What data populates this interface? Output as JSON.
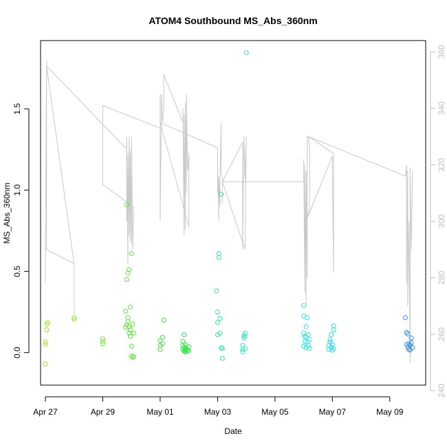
{
  "chart_data": {
    "type": "scatter",
    "title": "ATOM4 Southbound MS_Abs_360nm",
    "xlabel": "Date",
    "ylabel": "MS_Abs_360nm",
    "xlim": [
      "2023-04-26T20:00",
      "2023-05-10T06:00"
    ],
    "ylim": [
      -0.2,
      1.92
    ],
    "y2lim": [
      242,
      364
    ],
    "x_ticks": [
      {
        "date": "2023-04-27T00:00",
        "label": "Apr 27"
      },
      {
        "date": "2023-04-29T00:00",
        "label": "Apr 29"
      },
      {
        "date": "2023-05-01T00:00",
        "label": "May 01"
      },
      {
        "date": "2023-05-03T00:00",
        "label": "May 03"
      },
      {
        "date": "2023-05-05T00:00",
        "label": "May 05"
      },
      {
        "date": "2023-05-07T00:00",
        "label": "May 07"
      },
      {
        "date": "2023-05-09T00:00",
        "label": "May 09"
      }
    ],
    "y_ticks": [
      {
        "value": 0.0,
        "label": "0.0"
      },
      {
        "value": 0.5,
        "label": "0.5"
      },
      {
        "value": 1.0,
        "label": "1.0"
      },
      {
        "value": 1.5,
        "label": "1.5"
      }
    ],
    "y2_ticks": [
      {
        "value": 240,
        "label": "240"
      },
      {
        "value": 260,
        "label": "260"
      },
      {
        "value": 280,
        "label": "280"
      },
      {
        "value": 300,
        "label": "300"
      },
      {
        "value": 320,
        "label": "320"
      },
      {
        "value": 340,
        "label": "340"
      },
      {
        "value": 360,
        "label": "360"
      }
    ],
    "grid": false,
    "points": [
      {
        "x": "2023-04-27T00:00",
        "y": -0.07,
        "color": "#9ee63a"
      },
      {
        "x": "2023-04-27T00:00",
        "y": 0.05,
        "color": "#9ee63a"
      },
      {
        "x": "2023-04-27T00:00",
        "y": 0.065,
        "color": "#9ee63a"
      },
      {
        "x": "2023-04-27T01:00",
        "y": 0.14,
        "color": "#9ee63a"
      },
      {
        "x": "2023-04-27T01:00",
        "y": 0.175,
        "color": "#9ee63a"
      },
      {
        "x": "2023-04-27T02:00",
        "y": 0.185,
        "color": "#9ee63a"
      },
      {
        "x": "2023-04-28T00:00",
        "y": 0.205,
        "color": "#8fe63a"
      },
      {
        "x": "2023-04-28T00:00",
        "y": 0.215,
        "color": "#8fe63a"
      },
      {
        "x": "2023-04-29T00:00",
        "y": 0.055,
        "color": "#7ee63a"
      },
      {
        "x": "2023-04-29T00:00",
        "y": 0.07,
        "color": "#7ee63a"
      },
      {
        "x": "2023-04-29T00:00",
        "y": 0.085,
        "color": "#7ee63a"
      },
      {
        "x": "2023-04-29T19:00",
        "y": 0.155,
        "color": "#5ee63a"
      },
      {
        "x": "2023-04-29T19:00",
        "y": 0.255,
        "color": "#5ee63a"
      },
      {
        "x": "2023-04-29T20:00",
        "y": 0.17,
        "color": "#5ee63a"
      },
      {
        "x": "2023-04-29T20:00",
        "y": 0.45,
        "color": "#5ee63a"
      },
      {
        "x": "2023-04-29T20:00",
        "y": 0.91,
        "color": "#5ee63a"
      },
      {
        "x": "2023-04-29T21:00",
        "y": 0.19,
        "color": "#5ee63a"
      },
      {
        "x": "2023-04-29T21:00",
        "y": 0.215,
        "color": "#5ee63a"
      },
      {
        "x": "2023-04-29T21:00",
        "y": 0.49,
        "color": "#5ee63a"
      },
      {
        "x": "2023-04-29T22:00",
        "y": 0.12,
        "color": "#5ee63a"
      },
      {
        "x": "2023-04-29T22:00",
        "y": 0.16,
        "color": "#5ee63a"
      },
      {
        "x": "2023-04-29T22:00",
        "y": 0.51,
        "color": "#5ee63a"
      },
      {
        "x": "2023-04-29T23:00",
        "y": 0.1,
        "color": "#5ee63a"
      },
      {
        "x": "2023-04-29T23:00",
        "y": 0.14,
        "color": "#5ee63a"
      },
      {
        "x": "2023-04-29T23:00",
        "y": 0.28,
        "color": "#5ee63a"
      },
      {
        "x": "2023-04-30T00:00",
        "y": 0.61,
        "color": "#5ee63a"
      },
      {
        "x": "2023-04-30T00:00",
        "y": 0.04,
        "color": "#5ee63a"
      },
      {
        "x": "2023-04-30T00:00",
        "y": -0.02,
        "color": "#5ee63a"
      },
      {
        "x": "2023-04-30T01:00",
        "y": -0.03,
        "color": "#5ee63a"
      },
      {
        "x": "2023-04-30T01:00",
        "y": 0.175,
        "color": "#5ee63a"
      },
      {
        "x": "2023-04-30T02:00",
        "y": -0.025,
        "color": "#5ee63a"
      },
      {
        "x": "2023-04-30T02:00",
        "y": 0.12,
        "color": "#5ee63a"
      },
      {
        "x": "2023-05-01T00:00",
        "y": 0.02,
        "color": "#3fe63a"
      },
      {
        "x": "2023-05-01T00:00",
        "y": 0.045,
        "color": "#3fe63a"
      },
      {
        "x": "2023-05-01T00:00",
        "y": 0.075,
        "color": "#3fe63a"
      },
      {
        "x": "2023-05-01T02:00",
        "y": 0.055,
        "color": "#3fe63a"
      },
      {
        "x": "2023-05-01T02:00",
        "y": 0.095,
        "color": "#3fe63a"
      },
      {
        "x": "2023-05-01T03:00",
        "y": 0.2,
        "color": "#3fe63a"
      },
      {
        "x": "2023-05-01T19:00",
        "y": 0.02,
        "color": "#2ae63f"
      },
      {
        "x": "2023-05-01T19:00",
        "y": 0.045,
        "color": "#2ae63f"
      },
      {
        "x": "2023-05-01T19:00",
        "y": 0.07,
        "color": "#2ae63f"
      },
      {
        "x": "2023-05-01T20:00",
        "y": 0.01,
        "color": "#2ae63f"
      },
      {
        "x": "2023-05-01T20:00",
        "y": 0.03,
        "color": "#2ae63f"
      },
      {
        "x": "2023-05-01T20:00",
        "y": 0.11,
        "color": "#2ae63f"
      },
      {
        "x": "2023-05-01T21:00",
        "y": 0.005,
        "color": "#2ae63f"
      },
      {
        "x": "2023-05-01T21:00",
        "y": 0.02,
        "color": "#2ae63f"
      },
      {
        "x": "2023-05-01T21:00",
        "y": 0.05,
        "color": "#2ae63f"
      },
      {
        "x": "2023-05-01T22:00",
        "y": 0.01,
        "color": "#2ae63f"
      },
      {
        "x": "2023-05-01T22:00",
        "y": 0.025,
        "color": "#2ae63f"
      },
      {
        "x": "2023-05-01T23:00",
        "y": 0.015,
        "color": "#2ae63f"
      },
      {
        "x": "2023-05-02T00:00",
        "y": 0.01,
        "color": "#2ae63f"
      },
      {
        "x": "2023-05-02T00:00",
        "y": 0.035,
        "color": "#2ae63f"
      },
      {
        "x": "2023-05-02T23:00",
        "y": 0.38,
        "color": "#2ee6a8"
      },
      {
        "x": "2023-05-03T00:00",
        "y": 0.25,
        "color": "#2ee6a8"
      },
      {
        "x": "2023-05-03T00:00",
        "y": 0.185,
        "color": "#2ee6a8"
      },
      {
        "x": "2023-05-03T00:00",
        "y": 0.11,
        "color": "#2ee6a8"
      },
      {
        "x": "2023-05-03T01:00",
        "y": 0.61,
        "color": "#2ee6a8"
      },
      {
        "x": "2023-05-03T01:00",
        "y": 0.585,
        "color": "#2ee6a8"
      },
      {
        "x": "2023-05-03T02:00",
        "y": 0.21,
        "color": "#2ee6a8"
      },
      {
        "x": "2023-05-03T02:00",
        "y": 0.12,
        "color": "#2ee6a8"
      },
      {
        "x": "2023-05-03T03:00",
        "y": 0.975,
        "color": "#2ee6a8"
      },
      {
        "x": "2023-05-03T03:00",
        "y": 0.03,
        "color": "#2ee6a8"
      },
      {
        "x": "2023-05-03T04:00",
        "y": -0.035,
        "color": "#2ee6a8"
      },
      {
        "x": "2023-05-03T04:00",
        "y": 0.025,
        "color": "#2ee6a8"
      },
      {
        "x": "2023-05-03T21:00",
        "y": 0.005,
        "color": "#2ee6c0"
      },
      {
        "x": "2023-05-03T21:00",
        "y": 0.02,
        "color": "#2ee6c0"
      },
      {
        "x": "2023-05-03T21:00",
        "y": 0.045,
        "color": "#2ee6c0"
      },
      {
        "x": "2023-05-03T22:00",
        "y": 0.09,
        "color": "#2ee6c0"
      },
      {
        "x": "2023-05-03T22:00",
        "y": 0.105,
        "color": "#2ee6c0"
      },
      {
        "x": "2023-05-03T23:00",
        "y": 0.1,
        "color": "#2ee6c0"
      },
      {
        "x": "2023-05-03T23:00",
        "y": 0.12,
        "color": "#2ee6c0"
      },
      {
        "x": "2023-05-03T23:00",
        "y": 0.025,
        "color": "#2ee6c0"
      },
      {
        "x": "2023-05-04T00:00",
        "y": 1.845,
        "color": "#2ee6c0"
      },
      {
        "x": "2023-05-06T00:00",
        "y": 0.29,
        "color": "#2ee6e6"
      },
      {
        "x": "2023-05-06T00:00",
        "y": 0.225,
        "color": "#2ee6e6"
      },
      {
        "x": "2023-05-06T00:00",
        "y": 0.12,
        "color": "#2ee6e6"
      },
      {
        "x": "2023-05-06T00:00",
        "y": 0.04,
        "color": "#2ee6e6"
      },
      {
        "x": "2023-05-06T01:00",
        "y": 0.1,
        "color": "#2ee6e6"
      },
      {
        "x": "2023-05-06T01:00",
        "y": 0.07,
        "color": "#2ee6e6"
      },
      {
        "x": "2023-05-06T02:00",
        "y": 0.16,
        "color": "#2ee6e6"
      },
      {
        "x": "2023-05-06T02:00",
        "y": 0.095,
        "color": "#2ee6e6"
      },
      {
        "x": "2023-05-06T02:00",
        "y": 0.03,
        "color": "#2ee6e6"
      },
      {
        "x": "2023-05-06T03:00",
        "y": 0.215,
        "color": "#2ee6e6"
      },
      {
        "x": "2023-05-06T03:00",
        "y": 0.065,
        "color": "#2ee6e6"
      },
      {
        "x": "2023-05-06T04:00",
        "y": 0.11,
        "color": "#2ee6e6"
      },
      {
        "x": "2023-05-06T04:00",
        "y": 0.045,
        "color": "#2ee6e6"
      },
      {
        "x": "2023-05-06T05:00",
        "y": 0.08,
        "color": "#2ee6e6"
      },
      {
        "x": "2023-05-06T05:00",
        "y": 0.025,
        "color": "#2ee6e6"
      },
      {
        "x": "2023-05-06T21:00",
        "y": 0.02,
        "color": "#2ed9e6"
      },
      {
        "x": "2023-05-06T21:00",
        "y": 0.045,
        "color": "#2ed9e6"
      },
      {
        "x": "2023-05-06T22:00",
        "y": 0.065,
        "color": "#2ed9e6"
      },
      {
        "x": "2023-05-06T22:00",
        "y": 0.08,
        "color": "#2ed9e6"
      },
      {
        "x": "2023-05-06T23:00",
        "y": 0.03,
        "color": "#2ed9e6"
      },
      {
        "x": "2023-05-06T23:00",
        "y": 0.11,
        "color": "#2ed9e6"
      },
      {
        "x": "2023-05-07T00:00",
        "y": 0.015,
        "color": "#2ed9e6"
      },
      {
        "x": "2023-05-07T00:00",
        "y": 0.05,
        "color": "#2ed9e6"
      },
      {
        "x": "2023-05-07T01:00",
        "y": 0.14,
        "color": "#2ed9e6"
      },
      {
        "x": "2023-05-07T01:00",
        "y": 0.165,
        "color": "#2ed9e6"
      },
      {
        "x": "2023-05-07T01:00",
        "y": 0.025,
        "color": "#2ed9e6"
      },
      {
        "x": "2023-05-09T13:00",
        "y": 0.215,
        "color": "#2e8ce6"
      },
      {
        "x": "2023-05-09T14:00",
        "y": 0.125,
        "color": "#2e8ce6"
      },
      {
        "x": "2023-05-09T14:00",
        "y": 0.05,
        "color": "#2e8ce6"
      },
      {
        "x": "2023-05-09T15:00",
        "y": 0.115,
        "color": "#2e8ce6"
      },
      {
        "x": "2023-05-09T15:00",
        "y": 0.035,
        "color": "#2e8ce6"
      },
      {
        "x": "2023-05-09T16:00",
        "y": 0.02,
        "color": "#2e8ce6"
      },
      {
        "x": "2023-05-09T16:00",
        "y": 0.055,
        "color": "#2e8ce6"
      },
      {
        "x": "2023-05-09T17:00",
        "y": 0.015,
        "color": "#2e8ce6"
      },
      {
        "x": "2023-05-09T17:00",
        "y": 0.045,
        "color": "#2e8ce6"
      },
      {
        "x": "2023-05-09T18:00",
        "y": 0.06,
        "color": "#2e8ce6"
      },
      {
        "x": "2023-05-09T18:00",
        "y": 0.09,
        "color": "#2e8ce6"
      },
      {
        "x": "2023-05-09T19:00",
        "y": 0.03,
        "color": "#2e8ce6"
      }
    ],
    "line_series": {
      "axis": "right",
      "color": "#c8c8c8",
      "points": [
        [
          "2023-04-27T00:00",
          278
        ],
        [
          "2023-04-27T00:00",
          290
        ],
        [
          "2023-04-27T01:00",
          355
        ],
        [
          "2023-04-27T01:00",
          357
        ],
        [
          "2023-04-27T01:00",
          290
        ],
        [
          "2023-04-28T00:00",
          285
        ],
        [
          "2023-04-28T00:00",
          267
        ],
        [
          "2023-04-28T00:00",
          285
        ],
        [
          "2023-04-27T01:00",
          355
        ],
        [
          "2023-04-29T19:00",
          326
        ],
        [
          "2023-04-29T20:00",
          326
        ],
        [
          "2023-04-29T20:00",
          300
        ],
        [
          "2023-04-29T20:00",
          330
        ],
        [
          "2023-04-29T21:00",
          285
        ],
        [
          "2023-04-29T21:00",
          324
        ],
        [
          "2023-04-29T22:00",
          295
        ],
        [
          "2023-04-29T22:00",
          330
        ],
        [
          "2023-04-29T23:00",
          293
        ],
        [
          "2023-04-29T23:00",
          325
        ],
        [
          "2023-04-30T00:00",
          292
        ],
        [
          "2023-04-30T00:00",
          330
        ],
        [
          "2023-04-30T01:00",
          290
        ],
        [
          "2023-04-30T02:00",
          305
        ],
        [
          "2023-04-29T00:00",
          313
        ],
        [
          "2023-04-29T00:00",
          341
        ],
        [
          "2023-05-01T00:00",
          333
        ],
        [
          "2023-05-01T00:00",
          345
        ],
        [
          "2023-05-01T00:00",
          300
        ],
        [
          "2023-05-01T01:00",
          340
        ],
        [
          "2023-05-01T01:00",
          345
        ],
        [
          "2023-05-01T02:00",
          335
        ],
        [
          "2023-05-01T03:00",
          340
        ],
        [
          "2023-05-01T03:00",
          352
        ],
        [
          "2023-05-01T19:00",
          335
        ],
        [
          "2023-05-01T19:00",
          340
        ],
        [
          "2023-05-01T20:00",
          295
        ],
        [
          "2023-05-01T20:00",
          338
        ],
        [
          "2023-05-01T21:00",
          297
        ],
        [
          "2023-05-01T21:00",
          342
        ],
        [
          "2023-05-01T22:00",
          310
        ],
        [
          "2023-05-01T22:00",
          345
        ],
        [
          "2023-05-01T23:00",
          318
        ],
        [
          "2023-05-02T00:00",
          324
        ],
        [
          "2023-05-02T00:00",
          298
        ],
        [
          "2023-05-01T00:00",
          335
        ],
        [
          "2023-05-03T00:00",
          326
        ],
        [
          "2023-05-03T00:00",
          310
        ],
        [
          "2023-05-03T00:00",
          320
        ],
        [
          "2023-05-03T01:00",
          300
        ],
        [
          "2023-05-03T01:00",
          316
        ],
        [
          "2023-05-03T02:00",
          305
        ],
        [
          "2023-05-03T02:00",
          315
        ],
        [
          "2023-05-03T03:00",
          335
        ],
        [
          "2023-05-03T03:00",
          318
        ],
        [
          "2023-05-03T04:00",
          315
        ],
        [
          "2023-05-03T04:00",
          306
        ],
        [
          "2023-05-03T04:00",
          314
        ],
        [
          "2023-05-03T21:00",
          328
        ],
        [
          "2023-05-03T21:00",
          290
        ],
        [
          "2023-05-03T22:00",
          330
        ],
        [
          "2023-05-03T23:00",
          315
        ],
        [
          "2023-05-04T00:00",
          330
        ],
        [
          "2023-05-03T23:00",
          290
        ],
        [
          "2023-05-03T04:00",
          314
        ],
        [
          "2023-05-06T00:00",
          314
        ],
        [
          "2023-05-06T00:00",
          322
        ],
        [
          "2023-05-06T01:00",
          275
        ],
        [
          "2023-05-06T01:00",
          320
        ],
        [
          "2023-05-06T02:00",
          270
        ],
        [
          "2023-05-06T02:00",
          318
        ],
        [
          "2023-05-06T03:00",
          280
        ],
        [
          "2023-05-06T03:00",
          330
        ],
        [
          "2023-05-06T04:00",
          330
        ],
        [
          "2023-05-06T05:00",
          325
        ],
        [
          "2023-05-06T05:00",
          304
        ],
        [
          "2023-05-06T00:00",
          298
        ],
        [
          "2023-05-07T00:00",
          323
        ],
        [
          "2023-05-07T00:00",
          318
        ],
        [
          "2023-05-07T01:00",
          282
        ],
        [
          "2023-05-07T01:00",
          324
        ],
        [
          "2023-05-06T04:00",
          330
        ],
        [
          "2023-05-09T13:00",
          316
        ],
        [
          "2023-05-09T14:00",
          320
        ],
        [
          "2023-05-09T14:00",
          278
        ],
        [
          "2023-05-09T15:00",
          318
        ],
        [
          "2023-05-09T15:00",
          270
        ],
        [
          "2023-05-09T16:00",
          300
        ],
        [
          "2023-05-09T17:00",
          250
        ],
        [
          "2023-05-09T17:00",
          319
        ],
        [
          "2023-05-09T18:00",
          290
        ],
        [
          "2023-05-09T19:00",
          318
        ]
      ]
    }
  }
}
